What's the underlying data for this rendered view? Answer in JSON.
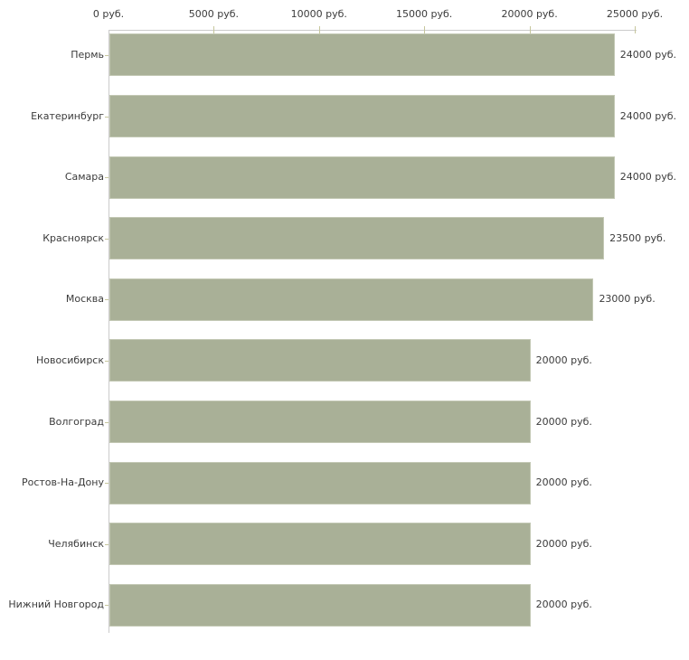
{
  "chart_data": {
    "type": "bar",
    "orientation": "horizontal",
    "title": "",
    "xlabel": "",
    "ylabel": "",
    "unit": "руб.",
    "categories": [
      "Пермь",
      "Екатеринбург",
      "Самара",
      "Красноярск",
      "Москва",
      "Новосибирск",
      "Волгоград",
      "Ростов-На-Дону",
      "Челябинск",
      "Нижний Новгород"
    ],
    "values": [
      24000,
      24000,
      24000,
      23500,
      23000,
      20000,
      20000,
      20000,
      20000,
      20000
    ],
    "value_labels": [
      "24000 руб.",
      "24000 руб.",
      "24000 руб.",
      "23500 руб.",
      "23000 руб.",
      "20000 руб.",
      "20000 руб.",
      "20000 руб.",
      "20000 руб.",
      "20000 руб."
    ],
    "xlim": [
      0,
      25000
    ],
    "x_ticks": [
      0,
      5000,
      10000,
      15000,
      20000,
      25000
    ],
    "x_tick_labels": [
      "0 руб.",
      "5000 руб.",
      "10000 руб.",
      "15000 руб.",
      "20000 руб.",
      "25000 руб."
    ],
    "grid": false,
    "legend": false,
    "axis_position": "top"
  },
  "colors": {
    "background": "#ffffff",
    "bar_fill": "#a9b097",
    "bar_edge": "#c3c8b4",
    "axis_line": "#cbcbcb",
    "tick_mark": "#c6c69c",
    "text": "#3b3b3b"
  }
}
